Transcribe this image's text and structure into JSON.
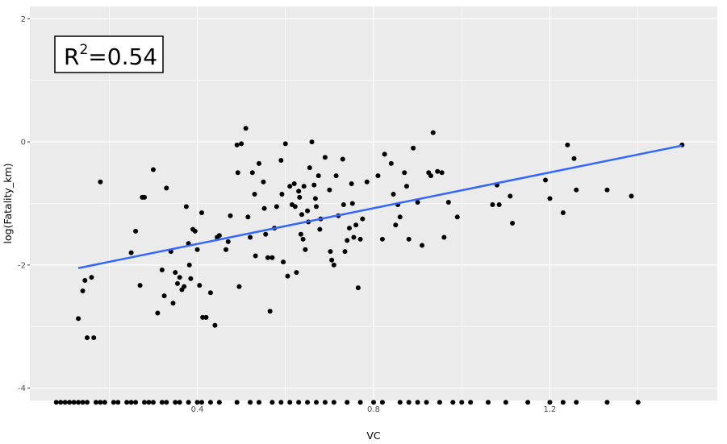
{
  "chart_data": {
    "type": "scatter",
    "xlabel": "VC",
    "ylabel": "log(Fatality_km)",
    "xlim": [
      0.02,
      1.58
    ],
    "ylim": [
      -4.2,
      2.2
    ],
    "x_ticks": [
      0.4,
      0.8,
      1.2
    ],
    "y_ticks": [
      -4,
      -2,
      0,
      2
    ],
    "grid": true,
    "annotation": {
      "base": "R",
      "sup": "2",
      "rest": "=0.54"
    },
    "fit_line": {
      "x": [
        0.13,
        1.5
      ],
      "y": [
        -2.05,
        -0.06
      ],
      "color": "#3366ff"
    },
    "point_color": "#000000",
    "panel_color": "#ebebeb",
    "points": [
      {
        "x": 0.13,
        "y": -2.87
      },
      {
        "x": 0.14,
        "y": -2.42
      },
      {
        "x": 0.145,
        "y": -2.25
      },
      {
        "x": 0.15,
        "y": -3.18
      },
      {
        "x": 0.16,
        "y": -2.2
      },
      {
        "x": 0.165,
        "y": -3.18
      },
      {
        "x": 0.18,
        "y": -0.65
      },
      {
        "x": 0.25,
        "y": -1.8
      },
      {
        "x": 0.26,
        "y": -1.45
      },
      {
        "x": 0.27,
        "y": -2.33
      },
      {
        "x": 0.275,
        "y": -0.9
      },
      {
        "x": 0.28,
        "y": -0.9
      },
      {
        "x": 0.3,
        "y": -0.45
      },
      {
        "x": 0.31,
        "y": -2.78
      },
      {
        "x": 0.32,
        "y": -2.08
      },
      {
        "x": 0.325,
        "y": -2.5
      },
      {
        "x": 0.33,
        "y": -0.75
      },
      {
        "x": 0.34,
        "y": -1.78
      },
      {
        "x": 0.345,
        "y": -2.62
      },
      {
        "x": 0.35,
        "y": -2.12
      },
      {
        "x": 0.355,
        "y": -2.3
      },
      {
        "x": 0.36,
        "y": -2.2
      },
      {
        "x": 0.365,
        "y": -2.4
      },
      {
        "x": 0.37,
        "y": -2.35
      },
      {
        "x": 0.375,
        "y": -1.05
      },
      {
        "x": 0.38,
        "y": -1.65
      },
      {
        "x": 0.382,
        "y": -2.0
      },
      {
        "x": 0.385,
        "y": -2.22
      },
      {
        "x": 0.39,
        "y": -1.42
      },
      {
        "x": 0.395,
        "y": -1.45
      },
      {
        "x": 0.4,
        "y": -1.75
      },
      {
        "x": 0.405,
        "y": -2.33
      },
      {
        "x": 0.41,
        "y": -1.15
      },
      {
        "x": 0.412,
        "y": -2.85
      },
      {
        "x": 0.42,
        "y": -2.85
      },
      {
        "x": 0.43,
        "y": -2.45
      },
      {
        "x": 0.44,
        "y": -2.98
      },
      {
        "x": 0.445,
        "y": -1.55
      },
      {
        "x": 0.45,
        "y": -1.52
      },
      {
        "x": 0.465,
        "y": -1.75
      },
      {
        "x": 0.47,
        "y": -1.62
      },
      {
        "x": 0.475,
        "y": -1.2
      },
      {
        "x": 0.49,
        "y": -0.05
      },
      {
        "x": 0.492,
        "y": -0.5
      },
      {
        "x": 0.495,
        "y": -2.35
      },
      {
        "x": 0.5,
        "y": -0.03
      },
      {
        "x": 0.51,
        "y": 0.22
      },
      {
        "x": 0.515,
        "y": -1.22
      },
      {
        "x": 0.52,
        "y": -1.55
      },
      {
        "x": 0.525,
        "y": -0.5
      },
      {
        "x": 0.53,
        "y": -0.85
      },
      {
        "x": 0.532,
        "y": -1.85
      },
      {
        "x": 0.54,
        "y": -0.35
      },
      {
        "x": 0.55,
        "y": -0.65
      },
      {
        "x": 0.552,
        "y": -1.08
      },
      {
        "x": 0.555,
        "y": -1.5
      },
      {
        "x": 0.56,
        "y": -1.88
      },
      {
        "x": 0.565,
        "y": -2.75
      },
      {
        "x": 0.57,
        "y": -1.88
      },
      {
        "x": 0.575,
        "y": -1.4
      },
      {
        "x": 0.58,
        "y": -1.05
      },
      {
        "x": 0.59,
        "y": -0.3
      },
      {
        "x": 0.592,
        "y": -0.85
      },
      {
        "x": 0.595,
        "y": -1.95
      },
      {
        "x": 0.6,
        "y": -0.03
      },
      {
        "x": 0.605,
        "y": -2.18
      },
      {
        "x": 0.61,
        "y": -0.72
      },
      {
        "x": 0.615,
        "y": -1.02
      },
      {
        "x": 0.62,
        "y": -0.68
      },
      {
        "x": 0.622,
        "y": -1.05
      },
      {
        "x": 0.625,
        "y": -2.12
      },
      {
        "x": 0.63,
        "y": -0.8
      },
      {
        "x": 0.632,
        "y": -0.9
      },
      {
        "x": 0.635,
        "y": -1.5
      },
      {
        "x": 0.637,
        "y": -1.18
      },
      {
        "x": 0.64,
        "y": -1.58
      },
      {
        "x": 0.642,
        "y": -0.72
      },
      {
        "x": 0.645,
        "y": -1.75
      },
      {
        "x": 0.65,
        "y": -1.12
      },
      {
        "x": 0.652,
        "y": -1.3
      },
      {
        "x": 0.655,
        "y": -0.42
      },
      {
        "x": 0.66,
        "y": 0.0
      },
      {
        "x": 0.665,
        "y": -0.7
      },
      {
        "x": 0.668,
        "y": -0.92
      },
      {
        "x": 0.67,
        "y": -1.05
      },
      {
        "x": 0.675,
        "y": -0.55
      },
      {
        "x": 0.678,
        "y": -1.42
      },
      {
        "x": 0.68,
        "y": -1.25
      },
      {
        "x": 0.69,
        "y": -0.25
      },
      {
        "x": 0.7,
        "y": -0.78
      },
      {
        "x": 0.702,
        "y": -1.78
      },
      {
        "x": 0.705,
        "y": -1.92
      },
      {
        "x": 0.71,
        "y": -2.0
      },
      {
        "x": 0.715,
        "y": -0.55
      },
      {
        "x": 0.72,
        "y": -1.2
      },
      {
        "x": 0.73,
        "y": -0.28
      },
      {
        "x": 0.732,
        "y": -1.02
      },
      {
        "x": 0.735,
        "y": -1.78
      },
      {
        "x": 0.74,
        "y": -1.6
      },
      {
        "x": 0.745,
        "y": -1.4
      },
      {
        "x": 0.75,
        "y": -0.68
      },
      {
        "x": 0.752,
        "y": -1.0
      },
      {
        "x": 0.755,
        "y": -1.55
      },
      {
        "x": 0.76,
        "y": -1.35
      },
      {
        "x": 0.765,
        "y": -2.37
      },
      {
        "x": 0.77,
        "y": -1.58
      },
      {
        "x": 0.775,
        "y": -1.25
      },
      {
        "x": 0.785,
        "y": -0.65
      },
      {
        "x": 0.81,
        "y": -0.55
      },
      {
        "x": 0.82,
        "y": -1.58
      },
      {
        "x": 0.825,
        "y": -0.2
      },
      {
        "x": 0.84,
        "y": -0.35
      },
      {
        "x": 0.845,
        "y": -0.85
      },
      {
        "x": 0.85,
        "y": -1.35
      },
      {
        "x": 0.855,
        "y": -1.02
      },
      {
        "x": 0.86,
        "y": -1.22
      },
      {
        "x": 0.87,
        "y": -0.5
      },
      {
        "x": 0.875,
        "y": -0.72
      },
      {
        "x": 0.88,
        "y": -1.58
      },
      {
        "x": 0.89,
        "y": -0.1
      },
      {
        "x": 0.9,
        "y": -0.98
      },
      {
        "x": 0.91,
        "y": -1.68
      },
      {
        "x": 0.925,
        "y": -0.5
      },
      {
        "x": 0.93,
        "y": -0.55
      },
      {
        "x": 0.935,
        "y": 0.15
      },
      {
        "x": 0.945,
        "y": -0.48
      },
      {
        "x": 0.955,
        "y": -0.5
      },
      {
        "x": 0.96,
        "y": -1.55
      },
      {
        "x": 0.97,
        "y": -0.98
      },
      {
        "x": 0.99,
        "y": -1.22
      },
      {
        "x": 1.07,
        "y": -1.02
      },
      {
        "x": 1.08,
        "y": -0.7
      },
      {
        "x": 1.085,
        "y": -1.02
      },
      {
        "x": 1.11,
        "y": -0.88
      },
      {
        "x": 1.115,
        "y": -1.32
      },
      {
        "x": 1.19,
        "y": -0.62
      },
      {
        "x": 1.2,
        "y": -0.92
      },
      {
        "x": 1.23,
        "y": -1.15
      },
      {
        "x": 1.24,
        "y": -0.05
      },
      {
        "x": 1.255,
        "y": -0.27
      },
      {
        "x": 1.26,
        "y": -0.78
      },
      {
        "x": 1.33,
        "y": -0.78
      },
      {
        "x": 1.385,
        "y": -0.88
      },
      {
        "x": 1.5,
        "y": -0.05
      }
    ],
    "zero_x": [
      0.08,
      0.09,
      0.1,
      0.11,
      0.12,
      0.13,
      0.14,
      0.15,
      0.17,
      0.18,
      0.19,
      0.21,
      0.22,
      0.24,
      0.25,
      0.26,
      0.28,
      0.29,
      0.3,
      0.32,
      0.33,
      0.35,
      0.36,
      0.38,
      0.4,
      0.41,
      0.43,
      0.45,
      0.49,
      0.52,
      0.54,
      0.57,
      0.59,
      0.61,
      0.63,
      0.65,
      0.67,
      0.69,
      0.71,
      0.74,
      0.77,
      0.8,
      0.82,
      0.86,
      0.88,
      0.9,
      0.92,
      0.95,
      0.98,
      1.0,
      1.02,
      1.06,
      1.1,
      1.15,
      1.2,
      1.23,
      1.26,
      1.33,
      1.4
    ],
    "zero_y": -4.23
  }
}
